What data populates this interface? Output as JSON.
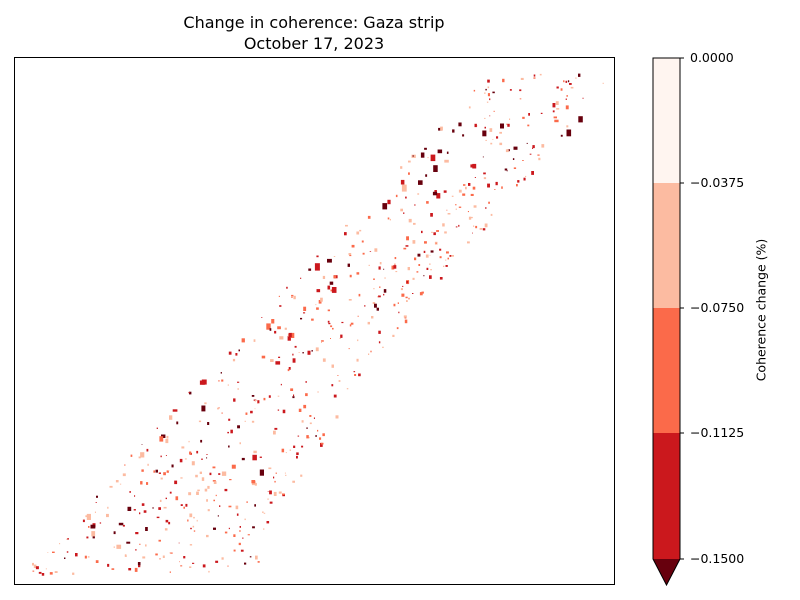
{
  "title_line1": "Change in coherence: Gaza strip",
  "title_line2": "October 17, 2023",
  "colorbar": {
    "label": "Coherence change (%)",
    "ticks": [
      "0.0000",
      "−0.0375",
      "−0.0750",
      "−0.1125",
      "−0.1500"
    ],
    "levels": [
      0.0,
      -0.0375,
      -0.075,
      -0.1125,
      -0.15
    ],
    "colors": [
      "#fff5f0",
      "#fcbba1",
      "#fb6a4a",
      "#cb181d",
      "#67000d"
    ],
    "extend": "min"
  },
  "map": {
    "region": "Gaza strip",
    "date": "October 17, 2023"
  }
}
